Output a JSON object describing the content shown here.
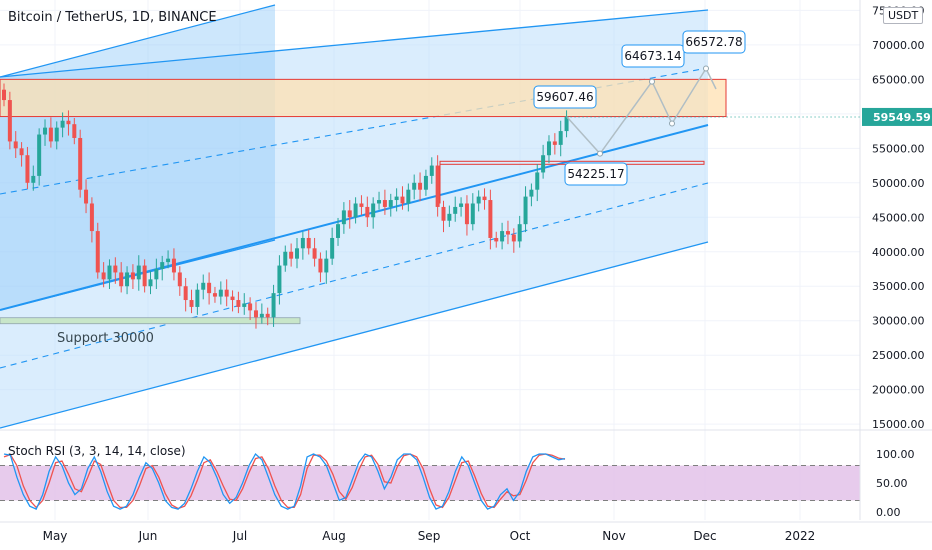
{
  "header": {
    "title": "Bitcoin / TetherUS, 1D, BINANCE",
    "unit": "USDT"
  },
  "colors": {
    "up": "#26a69a",
    "down": "#ef5350",
    "channel_line": "#2196f3",
    "channel_fill": "#bbdefb",
    "resistance_zone_fill": "#ffe0b2",
    "resistance_zone_border": "#e53935",
    "price_label_bg": "#26a69a",
    "stoch_k": "#2196f3",
    "stoch_d": "#ef5350",
    "stoch_band_fill": "#e1bee7"
  },
  "chart_data": [
    {
      "type": "candlestick",
      "title": "Bitcoin / TetherUS, 1D, BINANCE",
      "xlabels": [
        "May",
        "Jun",
        "Jul",
        "Aug",
        "Sep",
        "Oct",
        "Nov",
        "Dec",
        "2022"
      ],
      "ylim": [
        12000,
        75000
      ],
      "yticks": [
        15000,
        20000,
        25000,
        30000,
        35000,
        40000,
        45000,
        50000,
        55000,
        60000,
        65000,
        70000,
        75000
      ],
      "ytick_labels": [
        "15000.00",
        "20000.00",
        "25000.00",
        "30000.00",
        "35000.00",
        "40000.00",
        "45000.00",
        "50000.00",
        "55000.00",
        "60000.00",
        "65000.00",
        "70000.00",
        "75000.00"
      ],
      "current_price": 59549.59,
      "current_price_label": "59549.59",
      "close_approx": [
        62000,
        56000,
        55000,
        54000,
        50000,
        51000,
        57000,
        58000,
        56000,
        58000,
        59000,
        58500,
        56500,
        49000,
        47000,
        43000,
        37000,
        36000,
        38000,
        37000,
        35000,
        37000,
        36000,
        38000,
        35000,
        36000,
        37500,
        38500,
        39000,
        37000,
        35000,
        33000,
        32000,
        34500,
        35500,
        34000,
        33500,
        34500,
        33500,
        33000,
        32000,
        32500,
        31500,
        30500,
        31000,
        30500,
        34000,
        38000,
        40000,
        39000,
        40500,
        42000,
        40500,
        39000,
        37000,
        39000,
        42000,
        44000,
        46000,
        45000,
        47000,
        46500,
        45000,
        47000,
        47500,
        46500,
        47500,
        48000,
        47000,
        49000,
        50000,
        49000,
        51000,
        52500,
        46500,
        44500,
        45500,
        46500,
        47000,
        44000,
        47000,
        48000,
        47500,
        42000,
        41500,
        43000,
        42500,
        41500,
        44000,
        48000,
        49000,
        51500,
        54000,
        56000,
        55500,
        57500,
        59607
      ],
      "annotations": [
        {
          "text": "59607.46",
          "price": 59607.46
        },
        {
          "text": "54225.17",
          "price": 54225.17
        },
        {
          "text": "64673.14",
          "price": 64673.14
        },
        {
          "text": "66572.78",
          "price": 66572.78
        },
        {
          "text": "Support 30000",
          "price": 30000
        }
      ],
      "resistance_zone": [
        59607,
        65000
      ],
      "horizontal_level": 52900
    },
    {
      "type": "line",
      "title": "Stoch RSI (3, 3, 14, 14, close)",
      "ylim": [
        0,
        100
      ],
      "yticks": [
        0,
        50,
        100
      ],
      "ytick_labels": [
        "0.00",
        "50.00",
        "100.00"
      ],
      "bands": [
        20,
        80
      ],
      "series": [
        {
          "values": [
            100,
            98,
            60,
            30,
            10,
            5,
            30,
            70,
            95,
            80,
            50,
            30,
            40,
            75,
            95,
            70,
            35,
            10,
            5,
            10,
            30,
            60,
            85,
            75,
            50,
            20,
            8,
            5,
            15,
            40,
            70,
            95,
            85,
            60,
            30,
            15,
            25,
            50,
            80,
            100,
            90,
            60,
            30,
            10,
            5,
            10,
            45,
            95,
            100,
            95,
            80,
            50,
            20,
            25,
            55,
            85,
            100,
            95,
            70,
            40,
            60,
            90,
            100,
            100,
            90,
            60,
            25,
            5,
            10,
            35,
            70,
            95,
            80,
            50,
            20,
            5,
            10,
            30,
            40,
            20,
            35,
            70,
            95,
            100,
            100,
            95,
            90,
            92
          ]
        },
        {
          "values": [
            95,
            99,
            80,
            45,
            20,
            8,
            20,
            50,
            85,
            88,
            65,
            40,
            35,
            60,
            88,
            82,
            50,
            20,
            8,
            8,
            20,
            45,
            75,
            80,
            60,
            32,
            12,
            6,
            10,
            28,
            55,
            85,
            90,
            70,
            45,
            22,
            20,
            40,
            68,
            92,
            95,
            75,
            45,
            20,
            8,
            8,
            30,
            75,
            98,
            98,
            88,
            65,
            35,
            22,
            42,
            72,
            95,
            98,
            82,
            52,
            50,
            78,
            97,
            100,
            95,
            75,
            40,
            12,
            8,
            25,
            55,
            85,
            88,
            62,
            32,
            10,
            8,
            22,
            35,
            28,
            30,
            55,
            85,
            98,
            100,
            98,
            93,
            91
          ]
        }
      ]
    }
  ]
}
